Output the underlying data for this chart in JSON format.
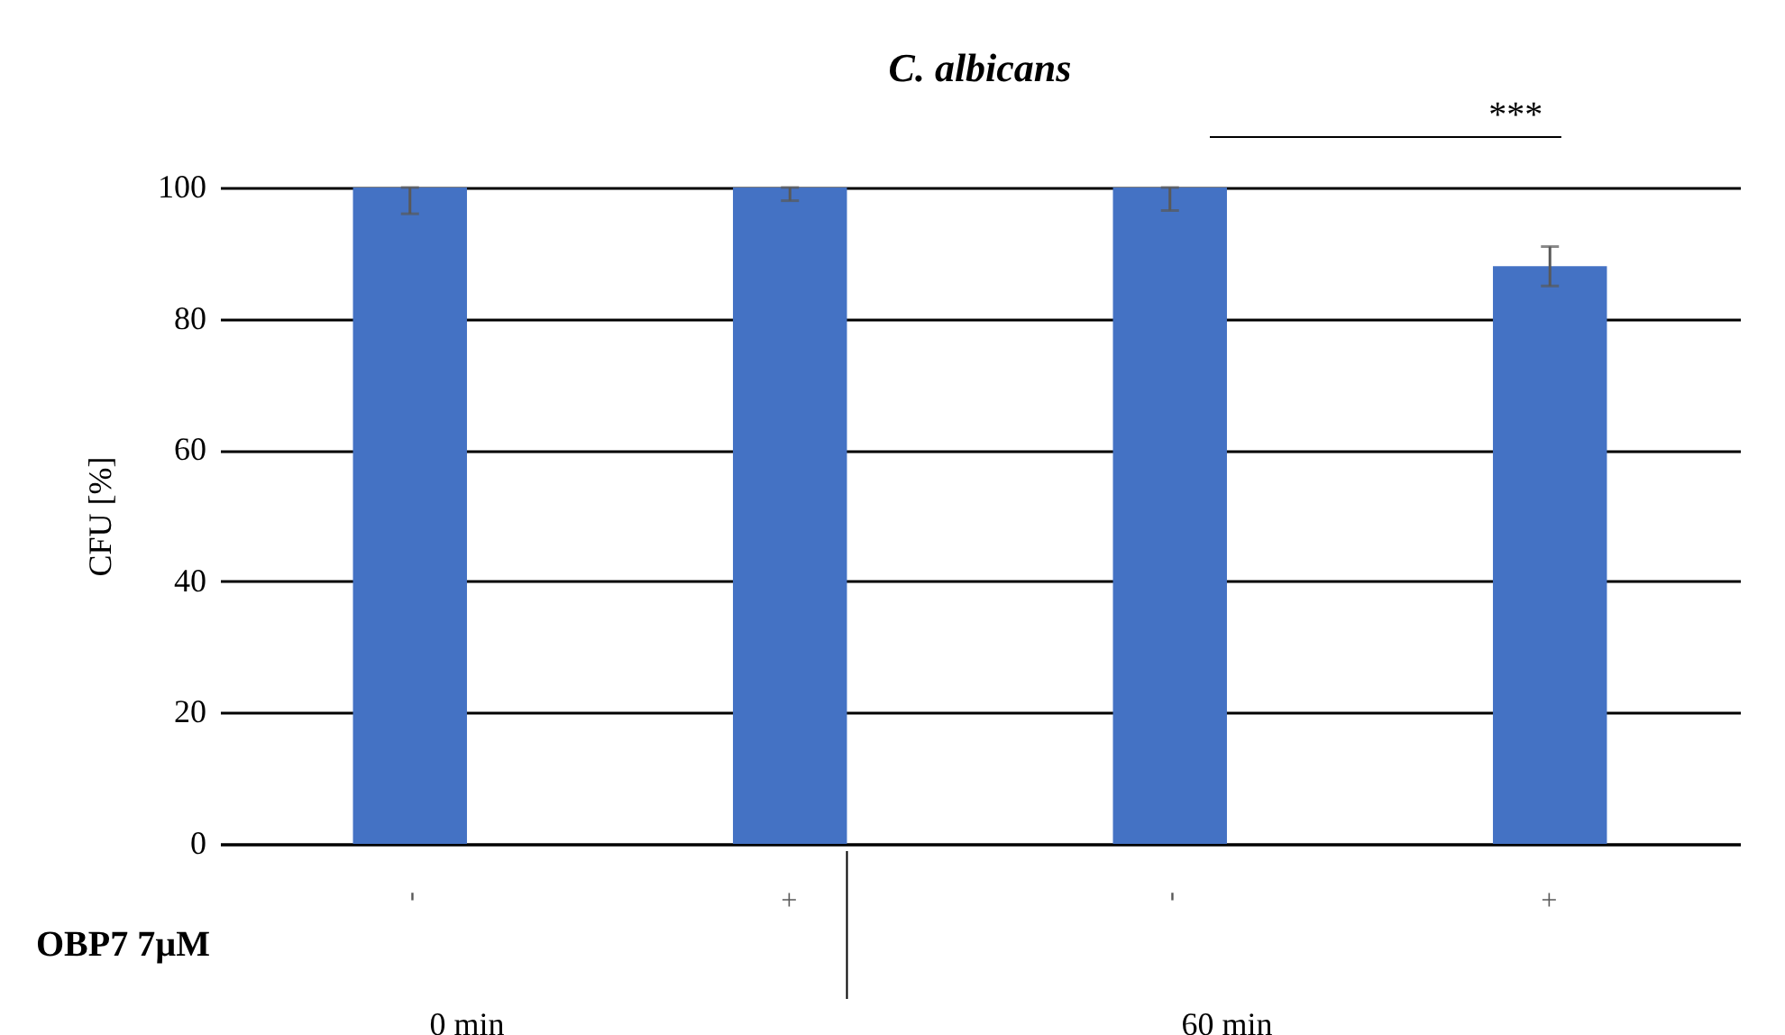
{
  "chart_data": {
    "type": "bar",
    "title": "C. albicans",
    "ylabel": "CFU [%]",
    "categories": [
      "-",
      "+",
      "-",
      "+"
    ],
    "series": [
      {
        "color": "#4472c4",
        "values": [
          100,
          100,
          100,
          88
        ],
        "errors": [
          [
            96,
            100
          ],
          [
            98,
            100
          ],
          [
            96.5,
            100
          ],
          3
        ]
      }
    ],
    "ylim": [
      0,
      100
    ],
    "yticks": [
      0,
      20,
      40,
      60,
      80,
      100
    ],
    "grid": "y",
    "annotations": [
      "***",
      "OBP7 7µM",
      "0 min",
      "60 min"
    ]
  }
}
